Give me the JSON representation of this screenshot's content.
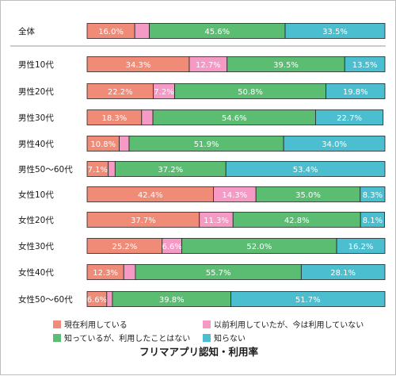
{
  "chart_data": {
    "type": "bar",
    "orientation": "horizontal",
    "stacked": true,
    "title": "フリマアプリ認知・利用率",
    "categories": [
      "全体",
      "男性10代",
      "男性20代",
      "男性30代",
      "男性40代",
      "男性50〜60代",
      "女性10代",
      "女性20代",
      "女性30代",
      "女性40代",
      "女性50〜60代"
    ],
    "series": [
      {
        "name": "現在利用している",
        "color": "#f08b78",
        "values": [
          16.0,
          34.3,
          22.2,
          18.3,
          10.8,
          7.1,
          42.4,
          37.7,
          25.2,
          12.3,
          6.6
        ]
      },
      {
        "name": "以前利用していたが、今は利用していない",
        "color": "#f49ac4",
        "values": [
          4.9,
          12.7,
          7.2,
          3.8,
          3.3,
          2.3,
          14.3,
          11.3,
          6.6,
          3.9,
          1.9
        ]
      },
      {
        "name": "知っているが、利用したことはない",
        "color": "#5bbd72",
        "values": [
          45.6,
          39.5,
          50.8,
          54.6,
          51.9,
          37.2,
          35.0,
          42.8,
          52.0,
          55.7,
          39.8
        ]
      },
      {
        "name": "知らない",
        "color": "#4bbfcf",
        "values": [
          33.5,
          13.5,
          19.8,
          22.7,
          34.0,
          53.4,
          8.3,
          8.1,
          16.2,
          28.1,
          51.7
        ]
      }
    ],
    "data_labels": [
      [
        "16.0%",
        "",
        "45.6%",
        "33.5%"
      ],
      [
        "34.3%",
        "12.7%",
        "39.5%",
        "13.5%"
      ],
      [
        "22.2%",
        "7.2%",
        "50.8%",
        "19.8%"
      ],
      [
        "18.3%",
        "",
        "54.6%",
        "22.7%"
      ],
      [
        "10.8%",
        "",
        "51.9%",
        "34.0%"
      ],
      [
        "7.1%",
        "",
        "37.2%",
        "53.4%"
      ],
      [
        "42.4%",
        "14.3%",
        "35.0%",
        "8.3%"
      ],
      [
        "37.7%",
        "11.3%",
        "42.8%",
        "8.1%"
      ],
      [
        "25.2%",
        "6.6%",
        "52.0%",
        "16.2%"
      ],
      [
        "12.3%",
        "",
        "55.7%",
        "28.1%"
      ],
      [
        "6.6%",
        "",
        "39.8%",
        "51.7%"
      ]
    ],
    "xlim": [
      0,
      100
    ],
    "grid": false,
    "legend_position": "bottom"
  }
}
